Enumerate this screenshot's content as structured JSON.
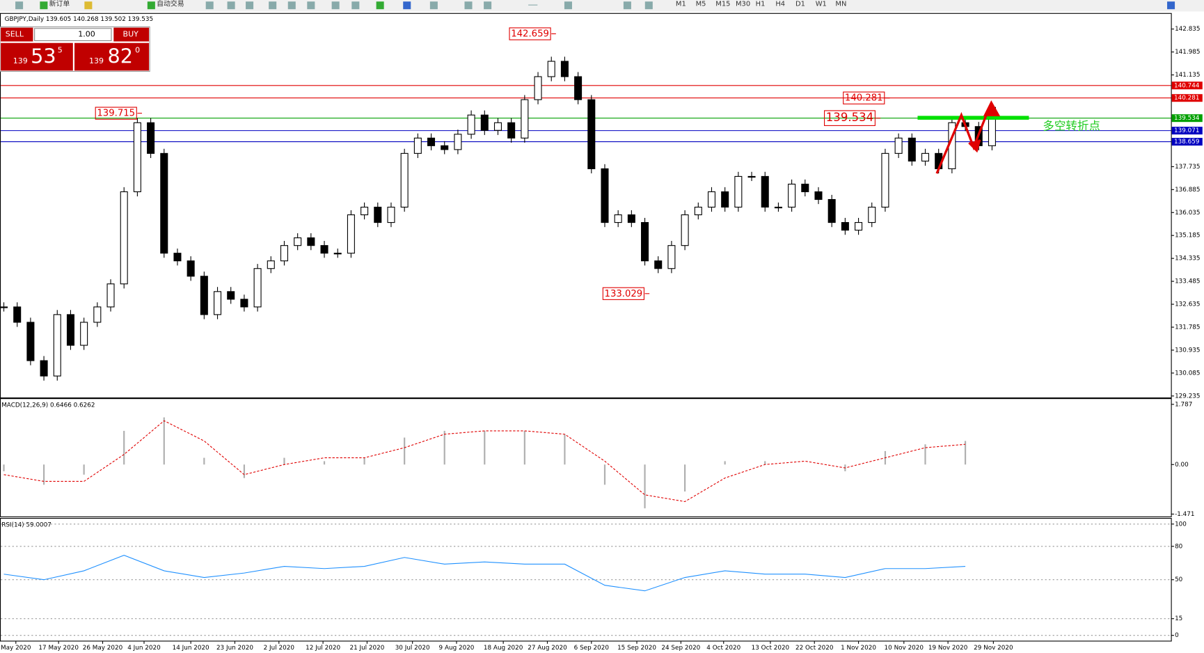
{
  "toolbar": {
    "new_order": "新订单",
    "auto_trading": "自动交易",
    "timeframes": [
      "M1",
      "M5",
      "M15",
      "M30",
      "H1",
      "H4",
      "D1",
      "W1",
      "MN"
    ]
  },
  "order_panel": {
    "sell": "SELL",
    "lot": "1.00",
    "buy": "BUY",
    "bid": {
      "big": 139,
      "pips": 53,
      "point": 5
    },
    "ask": {
      "big": 139,
      "pips": 82,
      "point": 0
    }
  },
  "chart_data": [
    {
      "type": "candlestick",
      "header": "GBPJPY,Daily 139.605 140.268 139.502 139.535",
      "note": "多空转折点",
      "values": [
        132.536,
        131.967,
        130.545,
        129.976,
        132.252,
        131.114,
        131.967,
        132.536,
        133.39,
        136.804,
        139.364,
        138.226,
        134.528,
        134.243,
        133.674,
        132.252,
        133.105,
        132.821,
        132.536,
        133.959,
        134.243,
        134.812,
        135.097,
        134.812,
        134.528,
        134.528,
        135.95,
        136.235,
        135.666,
        136.235,
        138.226,
        138.795,
        138.511,
        138.368,
        138.937,
        139.649,
        139.08,
        139.364,
        138.795,
        140.218,
        141.071,
        141.64,
        141.071,
        140.218,
        137.657,
        135.666,
        135.95,
        135.666,
        134.243,
        133.959,
        134.812,
        135.95,
        136.235,
        136.804,
        136.235,
        137.373,
        137.373,
        136.235,
        136.235,
        137.088,
        136.804,
        136.519,
        135.666,
        135.381,
        135.666,
        136.235,
        138.226,
        138.795,
        137.942,
        138.226,
        137.657,
        139.364,
        139.222,
        138.511,
        139.933
      ],
      "xlim": [
        -0.23,
        87.4
      ],
      "ylim": [
        129.18,
        143.4
      ],
      "yticks": [
        142.835,
        141.985,
        141.135,
        137.735,
        136.885,
        136.035,
        135.185,
        134.335,
        133.485,
        132.635,
        131.785,
        130.935,
        130.085,
        129.235
      ],
      "xticks": [
        {
          "value": 0.9,
          "label": "May 2020"
        },
        {
          "value": 4.1,
          "label": "17 May 2020"
        },
        {
          "value": 7.4,
          "label": "26 May 2020"
        },
        {
          "value": 10.5,
          "label": "4 Jun 2020"
        },
        {
          "value": 14.0,
          "label": "14 Jun 2020"
        },
        {
          "value": 17.3,
          "label": "23 Jun 2020"
        },
        {
          "value": 20.6,
          "label": "2 Jul 2020"
        },
        {
          "value": 23.9,
          "label": "12 Jul 2020"
        },
        {
          "value": 27.2,
          "label": "21 Jul 2020"
        },
        {
          "value": 30.6,
          "label": "30 Jul 2020"
        },
        {
          "value": 33.9,
          "label": "9 Aug 2020"
        },
        {
          "value": 37.4,
          "label": "18 Aug 2020"
        },
        {
          "value": 40.7,
          "label": "27 Aug 2020"
        },
        {
          "value": 44.0,
          "label": "6 Sep 2020"
        },
        {
          "value": 47.4,
          "label": "15 Sep 2020"
        },
        {
          "value": 50.7,
          "label": "24 Sep 2020"
        },
        {
          "value": 53.9,
          "label": "4 Oct 2020"
        },
        {
          "value": 57.4,
          "label": "13 Oct 2020"
        },
        {
          "value": 60.7,
          "label": "22 Oct 2020"
        },
        {
          "value": 64.0,
          "label": "1 Nov 2020"
        },
        {
          "value": 67.4,
          "label": "10 Nov 2020"
        },
        {
          "value": 70.7,
          "label": "19 Nov 2020"
        },
        {
          "value": 74.1,
          "label": "29 Nov 2020"
        }
      ],
      "levels": [
        {
          "value": 140.744,
          "color": "#e00000"
        },
        {
          "value": 140.281,
          "color": "#e00000"
        },
        {
          "value": 139.534,
          "color": "#00a000"
        },
        {
          "value": 139.071,
          "color": "#0000c0"
        },
        {
          "value": 138.659,
          "color": "#0000c0"
        }
      ],
      "annotations": [
        {
          "value": 142.659,
          "x": 41
        },
        {
          "value": 139.715,
          "x": 10
        },
        {
          "value": 140.281,
          "x": 66
        },
        {
          "value": 139.534,
          "x": 65.3
        },
        {
          "value": 133.029,
          "x": 48
        }
      ]
    },
    {
      "type": "macd",
      "header": "MACD(12,26,9) 0.6466 0.6262",
      "x": [
        0,
        3,
        6,
        9,
        12,
        15,
        18,
        21,
        24,
        27,
        30,
        33,
        36,
        39,
        42,
        45,
        48,
        51,
        54,
        57,
        60,
        63,
        66,
        69,
        72
      ],
      "values": [
        -0.2,
        -0.6,
        -0.3,
        1.0,
        1.4,
        0.2,
        -0.4,
        0.2,
        0.1,
        0.2,
        0.8,
        1.0,
        1.0,
        1.0,
        0.9,
        -0.6,
        -1.3,
        -0.8,
        0.1,
        0.1,
        0.0,
        -0.2,
        0.4,
        0.6,
        0.7
      ],
      "signal": [
        -0.3,
        -0.5,
        -0.5,
        0.3,
        1.3,
        0.7,
        -0.3,
        0.0,
        0.2,
        0.2,
        0.5,
        0.9,
        1.0,
        1.0,
        0.9,
        0.1,
        -0.9,
        -1.1,
        -0.4,
        0.0,
        0.1,
        -0.1,
        0.2,
        0.5,
        0.6
      ],
      "color": "#b0b0b0",
      "signal_color": "#e00000",
      "xlim": [
        -0.23,
        87.4
      ],
      "ylim": [
        -1.54,
        1.945
      ],
      "yticks": [
        1.787,
        {
          "value": 0,
          "label": "0.00"
        },
        -1.471
      ]
    },
    {
      "type": "rsi",
      "header": "RSI(14) 59.0007",
      "x": [
        0,
        3,
        6,
        9,
        12,
        15,
        18,
        21,
        24,
        27,
        30,
        33,
        36,
        39,
        42,
        45,
        48,
        51,
        54,
        57,
        60,
        63,
        66,
        69,
        72
      ],
      "values": [
        55,
        50,
        58,
        72,
        58,
        52,
        56,
        62,
        60,
        62,
        70,
        64,
        66,
        64,
        64,
        45,
        40,
        52,
        58,
        55,
        55,
        52,
        60,
        60,
        62
      ],
      "color": "#1e90ff",
      "grid": true,
      "xlim": [
        -0.23,
        87.4
      ],
      "ylim": [
        -5.5,
        104.8
      ],
      "yticks": [
        100,
        80,
        50,
        15,
        0
      ]
    }
  ]
}
